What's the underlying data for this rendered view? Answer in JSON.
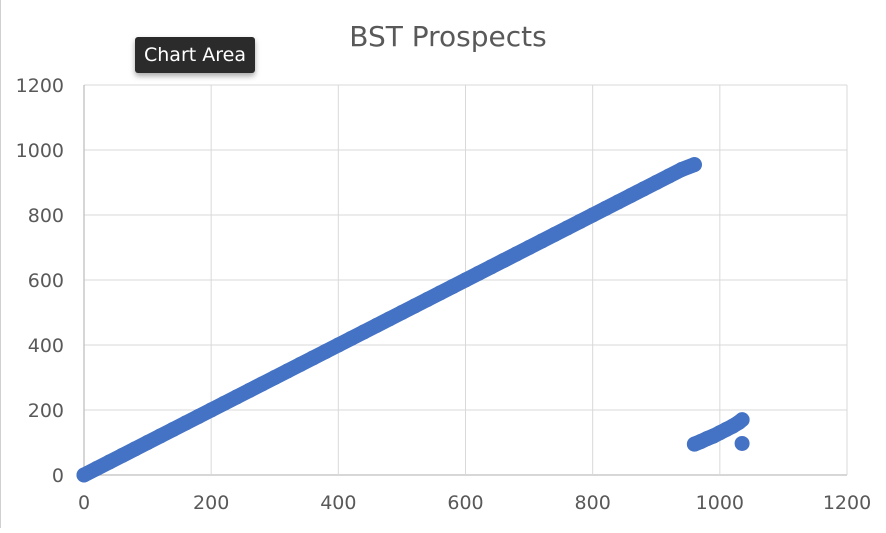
{
  "tooltip": {
    "label": "Chart Area"
  },
  "chart_data": {
    "type": "scatter",
    "title": "BST Prospects",
    "xlabel": "",
    "ylabel": "",
    "xlim": [
      0,
      1200
    ],
    "ylim": [
      0,
      1200
    ],
    "xticks": [
      0,
      200,
      400,
      600,
      800,
      1000,
      1200
    ],
    "yticks": [
      0,
      200,
      400,
      600,
      800,
      1000,
      1200
    ],
    "grid": true,
    "legend": "none",
    "color": "#4472c4",
    "series": [
      {
        "values_described": "dense diagonal band",
        "x": [
          0,
          20,
          40,
          60,
          80,
          100,
          120,
          140,
          160,
          180,
          200,
          220,
          240,
          260,
          280,
          300,
          320,
          340,
          360,
          380,
          400,
          420,
          440,
          460,
          480,
          500,
          520,
          540,
          560,
          580,
          600,
          620,
          640,
          660,
          680,
          700,
          720,
          740,
          760,
          780,
          800,
          820,
          840,
          860,
          880,
          900,
          920,
          940,
          960
        ],
        "y": [
          0,
          20,
          40,
          60,
          80,
          100,
          120,
          140,
          160,
          180,
          200,
          220,
          240,
          260,
          280,
          300,
          320,
          340,
          360,
          380,
          400,
          420,
          440,
          460,
          480,
          500,
          520,
          540,
          560,
          580,
          600,
          620,
          640,
          660,
          680,
          700,
          720,
          740,
          760,
          780,
          800,
          820,
          840,
          860,
          880,
          900,
          920,
          940,
          955
        ]
      },
      {
        "x": [
          960,
          970,
          980,
          990,
          1000,
          1010,
          1020,
          1030,
          1035
        ],
        "y": [
          95,
          103,
          112,
          120,
          130,
          140,
          150,
          162,
          170
        ]
      },
      {
        "x": [
          1035
        ],
        "y": [
          97
        ]
      }
    ]
  }
}
